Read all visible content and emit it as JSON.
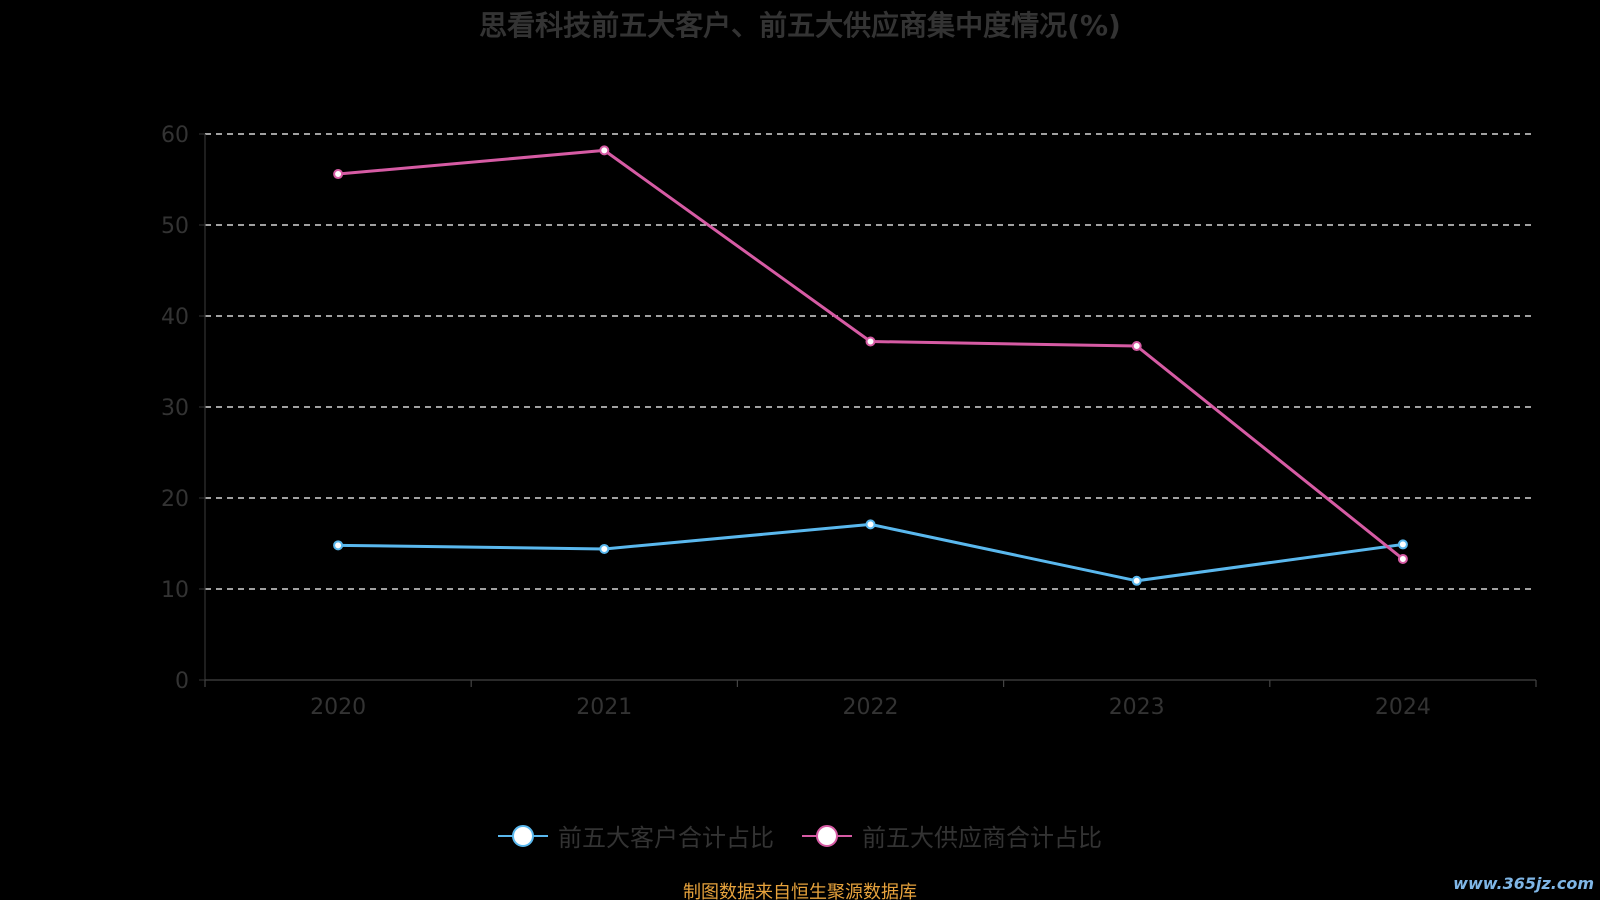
{
  "chart_data": {
    "type": "line",
    "title": "思看科技前五大客户、前五大供应商集中度情况(%)",
    "categories": [
      "2020",
      "2021",
      "2022",
      "2023",
      "2024"
    ],
    "y_ticks": [
      "0",
      "10",
      "20",
      "30",
      "40",
      "50",
      "60"
    ],
    "ylim": [
      0,
      60
    ],
    "grid": true,
    "legend_position": "bottom",
    "series": [
      {
        "name": "前五大客户合计占比",
        "color": "#5ab8ee",
        "values": [
          14.8,
          14.4,
          17.1,
          10.9,
          14.9
        ]
      },
      {
        "name": "前五大供应商合计占比",
        "color": "#d65ba4",
        "values": [
          55.6,
          58.2,
          37.2,
          36.7,
          13.3
        ]
      }
    ]
  },
  "source_note": "制图数据来自恒生聚源数据库",
  "watermark": "www.365jz.com"
}
